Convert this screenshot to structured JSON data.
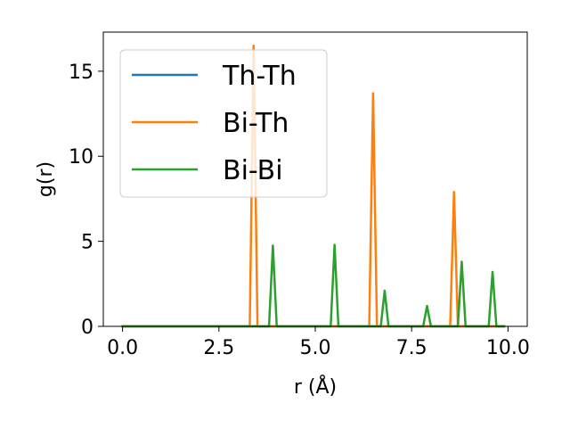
{
  "chart_data": {
    "type": "line",
    "xlabel": "r (Å)",
    "ylabel": "g(r)",
    "xlim": [
      -0.5,
      10.5
    ],
    "ylim": [
      0,
      17.3
    ],
    "xticks": [
      0.0,
      2.5,
      5.0,
      7.5,
      10.0
    ],
    "xtick_labels": [
      "0.0",
      "2.5",
      "5.0",
      "7.5",
      "10.0"
    ],
    "yticks": [
      0,
      5,
      10,
      15
    ],
    "ytick_labels": [
      "0",
      "5",
      "10",
      "15"
    ],
    "grid": false,
    "legend_position": "top-left",
    "series": [
      {
        "name": "Th-Th",
        "color": "#1f77b4",
        "x": [
          0.0,
          9.9
        ],
        "y": [
          0,
          0
        ]
      },
      {
        "name": "Bi-Th",
        "color": "#ff7f0e",
        "x": [
          0.0,
          3.3,
          3.4,
          3.5,
          6.4,
          6.5,
          6.6,
          8.5,
          8.6,
          8.7,
          9.9
        ],
        "y": [
          0,
          0,
          16.5,
          0,
          0,
          13.7,
          0,
          0,
          7.9,
          0,
          0
        ]
      },
      {
        "name": "Bi-Bi",
        "color": "#2ca02c",
        "x": [
          0.0,
          3.8,
          3.9,
          4.0,
          5.4,
          5.5,
          5.6,
          6.7,
          6.8,
          6.9,
          7.8,
          7.9,
          8.0,
          8.7,
          8.8,
          8.9,
          9.5,
          9.6,
          9.7,
          9.9
        ],
        "y": [
          0,
          0,
          4.75,
          0,
          0,
          4.8,
          0,
          0,
          2.1,
          0,
          0,
          1.2,
          0,
          0,
          3.8,
          0,
          0,
          3.2,
          0,
          0
        ]
      }
    ]
  }
}
